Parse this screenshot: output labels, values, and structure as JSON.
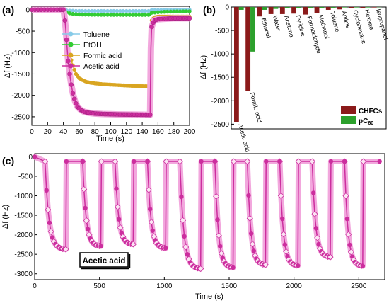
{
  "colors": {
    "toluene": "#87cbe8",
    "etoh": "#33cc33",
    "formic": "#d9a520",
    "acetic": "#cc2e9e",
    "acetic_halo": "#f2a7dd",
    "chfcs": "#8b1a1a",
    "pc60": "#2ca02c"
  },
  "chart_data": [
    {
      "panel": "(a)",
      "type": "line",
      "xlabel": "Time (s)",
      "ylabel": "Δf (Hz)",
      "xlim": [
        0,
        200
      ],
      "ylim": [
        -2700,
        80
      ],
      "xticks": [
        0,
        20,
        40,
        60,
        80,
        100,
        120,
        140,
        160,
        180,
        200
      ],
      "yticks": [
        0,
        -500,
        -1000,
        -1500,
        -2000,
        -2500
      ],
      "series": [
        {
          "name": "Toluene",
          "color_key": "toluene",
          "marker": "◄",
          "x": [
            0,
            40,
            45,
            55,
            70,
            100,
            150,
            152,
            170,
            200
          ],
          "y": [
            0,
            0,
            -20,
            -28,
            -30,
            -30,
            -30,
            -8,
            -3,
            0
          ]
        },
        {
          "name": "EtOH",
          "color_key": "etoh",
          "marker": "◄",
          "x": [
            0,
            40,
            44,
            50,
            60,
            80,
            110,
            150,
            152,
            170,
            200
          ],
          "y": [
            0,
            0,
            -60,
            -95,
            -110,
            -118,
            -120,
            -120,
            -70,
            -45,
            -35
          ]
        },
        {
          "name": "Formic acid",
          "color_key": "formic",
          "marker": "◐",
          "x": [
            0,
            40,
            41,
            42,
            43,
            45,
            48,
            52,
            56,
            60,
            65,
            70,
            80,
            90,
            100,
            110,
            120,
            130,
            140,
            150,
            151,
            152,
            155,
            160,
            180,
            200
          ],
          "y": [
            0,
            0,
            -150,
            -300,
            -500,
            -800,
            -1050,
            -1300,
            -1500,
            -1600,
            -1650,
            -1690,
            -1720,
            -1740,
            -1750,
            -1760,
            -1770,
            -1780,
            -1785,
            -1790,
            -600,
            -250,
            -180,
            -160,
            -160,
            -160
          ]
        },
        {
          "name": "Acetic acid",
          "color_key": "acetic",
          "marker": "◐",
          "x": [
            0,
            40,
            41,
            42,
            43,
            44,
            45,
            46,
            48,
            50,
            52,
            55,
            58,
            62,
            66,
            70,
            75,
            80,
            90,
            100,
            110,
            120,
            130,
            140,
            150,
            151,
            152,
            155,
            160,
            180,
            200
          ],
          "y": [
            0,
            0,
            -100,
            -250,
            -450,
            -700,
            -950,
            -1200,
            -1500,
            -1750,
            -1950,
            -2150,
            -2270,
            -2340,
            -2380,
            -2400,
            -2415,
            -2425,
            -2435,
            -2440,
            -2445,
            -2448,
            -2450,
            -2452,
            -2455,
            -900,
            -400,
            -250,
            -220,
            -200,
            -200
          ]
        }
      ],
      "legend": [
        "Toluene",
        "EtOH",
        "Formic acid",
        "Acetic acid"
      ]
    },
    {
      "panel": "(b)",
      "type": "bar",
      "ylabel": "Δf (Hz)",
      "ylim": [
        -2600,
        0
      ],
      "yticks": [
        0,
        -500,
        -1000,
        -1500,
        -2000,
        -2500
      ],
      "categories": [
        "Acetic acid",
        "Formic acid",
        "Ethanol",
        "Water",
        "Acetone",
        "Pyridine",
        "Formaldehyde",
        "Methanol",
        "Toluene",
        "Aniline",
        "Cyclohexane",
        "Hexane",
        "Isopropanol"
      ],
      "series": [
        {
          "name": "CHFCs",
          "color_key": "chfcs",
          "values": [
            -2460,
            -1790,
            -200,
            -150,
            -150,
            -140,
            -160,
            -130,
            -60,
            -50,
            -30,
            -20,
            -10
          ]
        },
        {
          "name": "pC",
          "name_sub": "60",
          "color_key": "pc60",
          "values": [
            -60,
            -950,
            -60,
            -40,
            -30,
            -30,
            -30,
            -20,
            -15,
            -10,
            -10,
            -10,
            -5
          ]
        }
      ],
      "legend": "bottom-right"
    },
    {
      "panel": "(c)",
      "type": "line",
      "xlabel": "Time (s)",
      "ylabel": "Δf (Hz)",
      "xlim": [
        0,
        2700
      ],
      "ylim": [
        -3150,
        80
      ],
      "xticks": [
        0,
        500,
        1000,
        1500,
        2000,
        2500
      ],
      "yticks": [
        0,
        -500,
        -1000,
        -1500,
        -2000,
        -2500,
        -3000
      ],
      "annotation": "Acetic acid",
      "cycles": [
        {
          "start": 80,
          "end": 240,
          "min": -2380
        },
        {
          "start": 370,
          "end": 510,
          "min": -2300
        },
        {
          "start": 620,
          "end": 760,
          "min": -2250
        },
        {
          "start": 870,
          "end": 1010,
          "min": -2350
        },
        {
          "start": 1120,
          "end": 1280,
          "min": -2880
        },
        {
          "start": 1390,
          "end": 1530,
          "min": -2850
        },
        {
          "start": 1640,
          "end": 1780,
          "min": -2780
        },
        {
          "start": 1890,
          "end": 2030,
          "min": -2800
        },
        {
          "start": 2140,
          "end": 2280,
          "min": -2580
        },
        {
          "start": 2390,
          "end": 2530,
          "min": -2810
        }
      ],
      "baseline": -120
    }
  ],
  "panels": {
    "a": {
      "label": "(a)"
    },
    "b": {
      "label": "(b)"
    },
    "c": {
      "label": "(c)"
    }
  },
  "legend_b": {
    "chfcs": "CHFCs",
    "pc60_main": "pC",
    "pc60_sub": "60"
  }
}
